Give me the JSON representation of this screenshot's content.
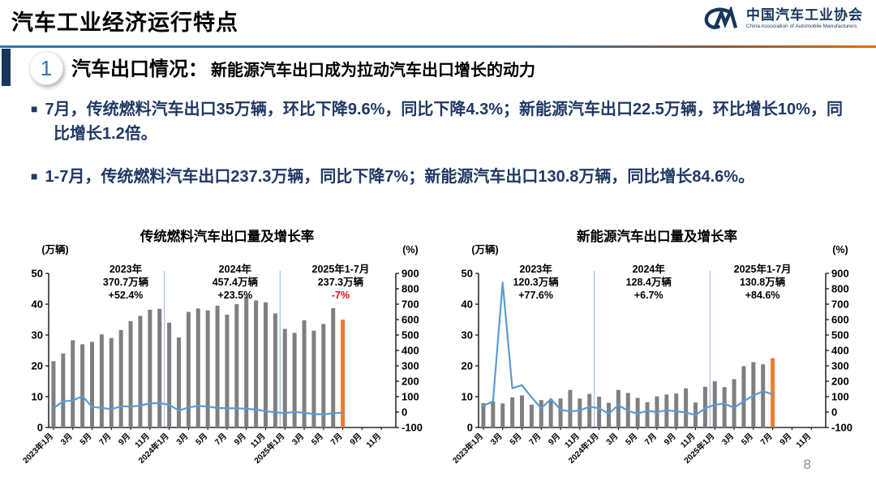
{
  "page": {
    "title": "汽车工业经济运行特点",
    "page_number": "8"
  },
  "logo": {
    "name_cn": "中国汽车工业协会",
    "name_en": "China Association of Automobile Manufacturers"
  },
  "section": {
    "number": "1",
    "title": "汽车出口情况：",
    "subtitle": "新能源汽车出口成为拉动汽车出口增长的动力"
  },
  "bullet_marker": "■",
  "bullets": [
    "7月，传统燃料汽车出口35万辆，环比下降9.6%，同比下降4.3%；新能源汽车出口22.5万辆，环比增长10%，同比增长1.2倍。",
    "1-7月，传统燃料汽车出口237.3万辆，同比下降7%；新能源汽车出口130.8万辆，同比增长84.6%。"
  ],
  "colors": {
    "text_navy": "#1F3864",
    "accent_blue": "#2E75B6",
    "divider_orange": "#E36C09",
    "logo_navy": "#17365D",
    "negative_red": "#FF0000"
  },
  "chart_data": [
    {
      "type": "bar",
      "title": "传统燃料汽车出口量及增长率",
      "left_axis_label": "(万辆)",
      "right_axis_label": "(%)",
      "left_ylim": [
        0,
        50
      ],
      "right_ylim": [
        -100,
        900
      ],
      "left_ticks": [
        0,
        10,
        20,
        30,
        40,
        50
      ],
      "right_ticks": [
        900,
        800,
        700,
        600,
        500,
        400,
        300,
        200,
        100,
        0,
        -100
      ],
      "n_slots": 36,
      "highlight_index": 30,
      "x_tick_labels": [
        "2023年1月",
        "3月",
        "5月",
        "7月",
        "9月",
        "11月",
        "2024年1月",
        "3月",
        "5月",
        "7月",
        "9月",
        "11月",
        "2025年1月",
        "3月",
        "5月",
        "7月",
        "9月",
        "11月"
      ],
      "categories": [
        "2023-01",
        "2023-02",
        "2023-03",
        "2023-04",
        "2023-05",
        "2023-06",
        "2023-07",
        "2023-08",
        "2023-09",
        "2023-10",
        "2023-11",
        "2023-12",
        "2024-01",
        "2024-02",
        "2024-03",
        "2024-04",
        "2024-05",
        "2024-06",
        "2024-07",
        "2024-08",
        "2024-09",
        "2024-10",
        "2024-11",
        "2024-12",
        "2025-01",
        "2025-02",
        "2025-03",
        "2025-04",
        "2025-05",
        "2025-06",
        "2025-07"
      ],
      "series": [
        {
          "name": "出口量(万辆)",
          "kind": "bar",
          "axis": "left",
          "values": [
            21.5,
            24,
            28.3,
            27,
            27.8,
            30.2,
            29,
            31.6,
            34.5,
            36.2,
            38.2,
            38.5,
            34,
            29.2,
            37.5,
            38.6,
            38,
            39.5,
            36.6,
            40,
            42.5,
            41.2,
            40.6,
            37,
            32,
            30.7,
            34.8,
            31.4,
            33.6,
            38.7,
            35
          ]
        },
        {
          "name": "增长率(%)",
          "kind": "line",
          "axis": "right",
          "values": [
            25,
            70,
            75,
            103,
            33,
            28,
            18,
            38,
            35,
            42,
            57,
            58,
            48,
            10,
            30,
            40,
            36,
            27,
            24,
            24,
            22,
            16,
            6,
            -2,
            -6,
            1,
            -4,
            -13,
            -15,
            -7,
            -4
          ]
        }
      ],
      "separators": [
        12,
        24
      ],
      "annotations": [
        {
          "x_frac": 0.222,
          "lines": [
            "2023年",
            "370.7万辆",
            "+52.4%"
          ]
        },
        {
          "x_frac": 0.537,
          "lines": [
            "2024年",
            "457.4万辆",
            "+23.5%"
          ]
        },
        {
          "x_frac": 0.841,
          "lines": [
            "2025年1-7月",
            "237.3万辆",
            "-7%"
          ],
          "last_line_color": "#FF0000"
        }
      ],
      "colors": {
        "bar": "#7F7F7F",
        "highlight": "#ED7D31",
        "line": "#5B9BD5",
        "separator": "#9DC3E6"
      }
    },
    {
      "type": "bar",
      "title": "新能源汽车出口量及增长率",
      "left_axis_label": "(万辆)",
      "right_axis_label": "(%)",
      "left_ylim": [
        0,
        50
      ],
      "right_ylim": [
        -100,
        900
      ],
      "left_ticks": [
        0,
        10,
        20,
        30,
        40,
        50
      ],
      "right_ticks": [
        900,
        800,
        700,
        600,
        500,
        400,
        300,
        200,
        100,
        0,
        -100
      ],
      "n_slots": 36,
      "highlight_index": 30,
      "x_tick_labels": [
        "2023年1月",
        "3月",
        "5月",
        "7月",
        "9月",
        "11月",
        "2024年1月",
        "3月",
        "5月",
        "7月",
        "9月",
        "11月",
        "2025年1月",
        "3月",
        "5月",
        "7月",
        "9月",
        "11月"
      ],
      "categories": [
        "2023-01",
        "2023-02",
        "2023-03",
        "2023-04",
        "2023-05",
        "2023-06",
        "2023-07",
        "2023-08",
        "2023-09",
        "2023-10",
        "2023-11",
        "2023-12",
        "2024-01",
        "2024-02",
        "2024-03",
        "2024-04",
        "2024-05",
        "2024-06",
        "2024-07",
        "2024-08",
        "2024-09",
        "2024-10",
        "2024-11",
        "2024-12",
        "2025-01",
        "2025-02",
        "2025-03",
        "2025-04",
        "2025-05",
        "2025-06",
        "2025-07"
      ],
      "series": [
        {
          "name": "出口量(万辆)",
          "kind": "bar",
          "axis": "left",
          "values": [
            7.9,
            8.4,
            7.8,
            9.8,
            10.4,
            7.4,
            8.9,
            8.7,
            9.4,
            12.2,
            9.4,
            10.9,
            10,
            8,
            12.2,
            11.2,
            9.6,
            8.2,
            10.1,
            10.7,
            11,
            12.7,
            8.1,
            13.2,
            15,
            13.1,
            15.7,
            19.9,
            21.2,
            20.5,
            22.5
          ]
        },
        {
          "name": "增长率(%)",
          "kind": "line",
          "axis": "right",
          "values": [
            40,
            70,
            840,
            155,
            175,
            95,
            25,
            85,
            15,
            5,
            10,
            35,
            25,
            -10,
            45,
            8,
            -10,
            8,
            0,
            12,
            5,
            -2,
            -20,
            25,
            48,
            55,
            28,
            70,
            108,
            135,
            116
          ]
        }
      ],
      "separators": [
        12,
        24
      ],
      "annotations": [
        {
          "x_frac": 0.165,
          "lines": [
            "2023年",
            "120.3万辆",
            "+77.6%"
          ]
        },
        {
          "x_frac": 0.49,
          "lines": [
            "2024年",
            "128.4万辆",
            "+6.7%"
          ]
        },
        {
          "x_frac": 0.818,
          "lines": [
            "2025年1-7月",
            "130.8万辆",
            "+84.6%"
          ]
        }
      ],
      "colors": {
        "bar": "#7F7F7F",
        "highlight": "#ED7D31",
        "line": "#5B9BD5",
        "separator": "#9DC3E6"
      }
    }
  ]
}
